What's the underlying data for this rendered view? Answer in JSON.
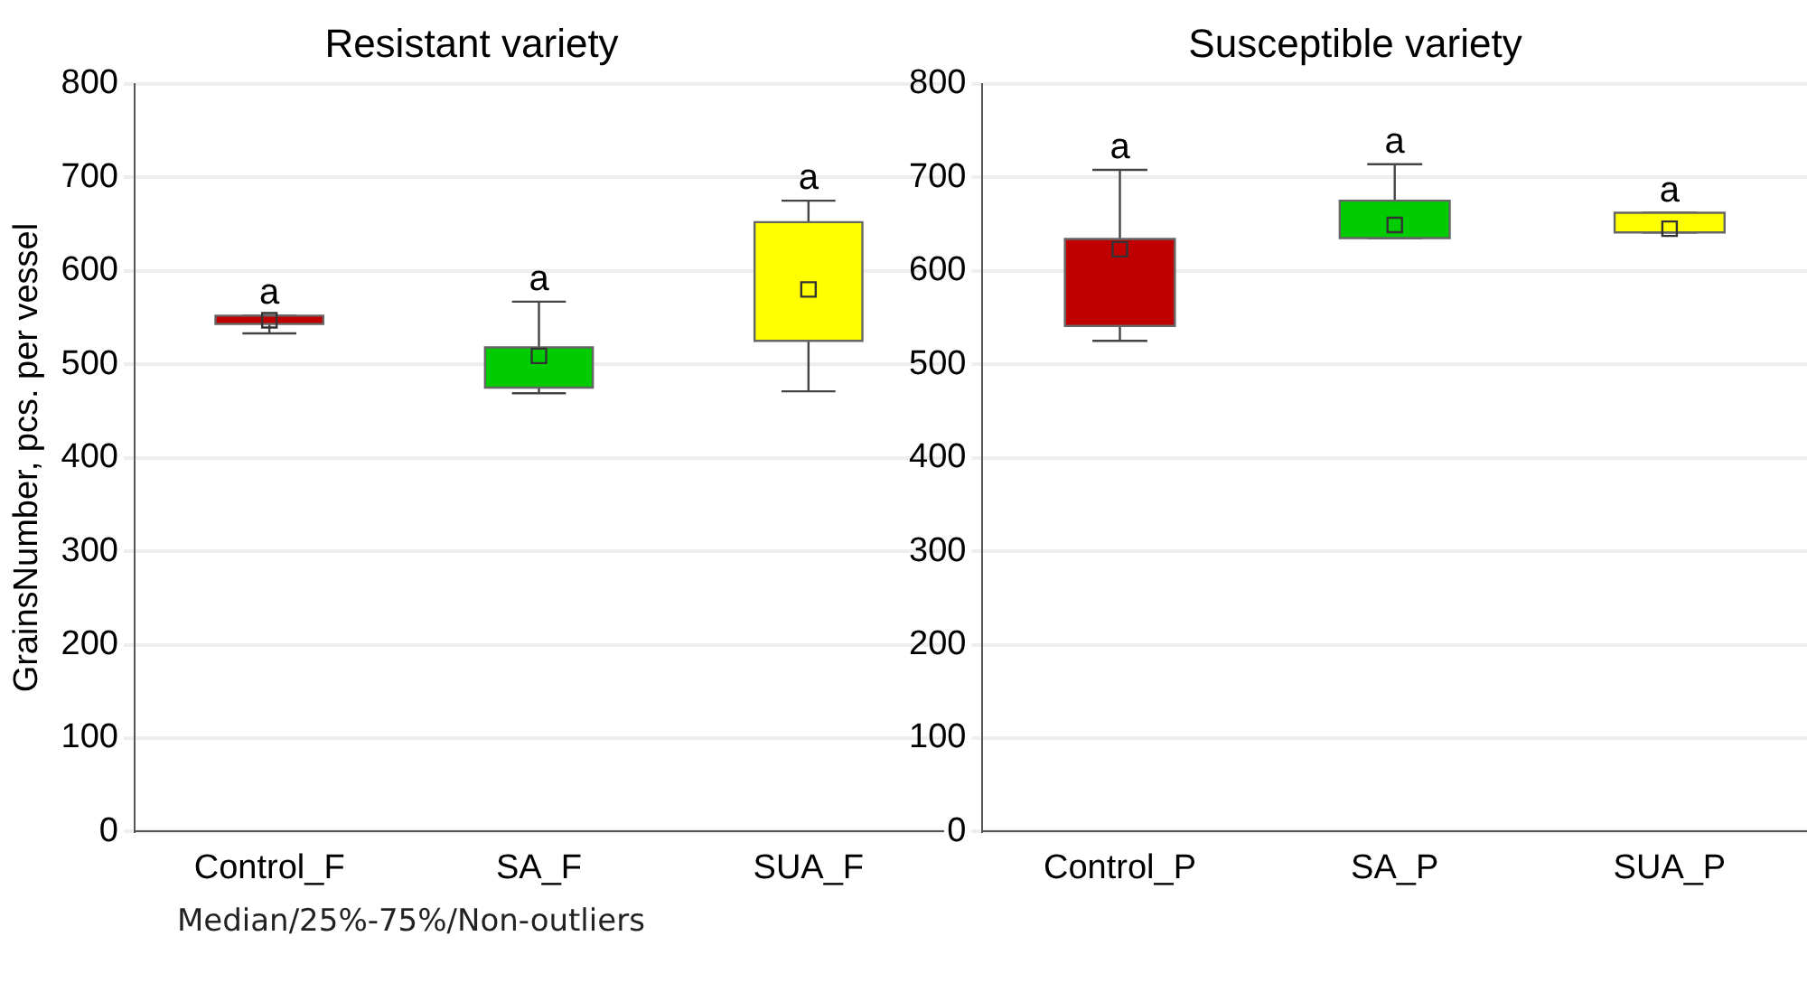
{
  "chart_data": [
    {
      "type": "box",
      "title": "Resistant variety",
      "ylabel": "GrainsNumber, pcs. per vessel",
      "categories": [
        "Control_F",
        "SA_F",
        "SUA_F"
      ],
      "colors": [
        "#c00000",
        "#00cc00",
        "#ffff00"
      ],
      "boxes": [
        {
          "low": 533,
          "q1": 543,
          "median": 547,
          "q3": 552,
          "high": 552
        },
        {
          "low": 469,
          "q1": 475,
          "median": 509,
          "q3": 518,
          "high": 567
        },
        {
          "low": 471,
          "q1": 525,
          "median": 580,
          "q3": 652,
          "high": 675
        }
      ],
      "ylim": [
        0,
        800
      ],
      "yticks": [
        0,
        100,
        200,
        300,
        400,
        500,
        600,
        700,
        800
      ],
      "grid": "y",
      "annotations": [
        "a",
        "a",
        "a",
        "Median/25%-75%/Non-outliers"
      ]
    },
    {
      "type": "box",
      "title": "Susceptible variety",
      "categories": [
        "Control_P",
        "SA_P",
        "SUA_P"
      ],
      "colors": [
        "#c00000",
        "#00cc00",
        "#ffff00"
      ],
      "boxes": [
        {
          "low": 525,
          "q1": 541,
          "median": 623,
          "q3": 634,
          "high": 708
        },
        {
          "low": 635,
          "q1": 635,
          "median": 649,
          "q3": 675,
          "high": 714
        },
        {
          "low": 641,
          "q1": 641,
          "median": 645,
          "q3": 662,
          "high": 662
        }
      ],
      "ylim": [
        0,
        800
      ],
      "yticks": [
        0,
        100,
        200,
        300,
        400,
        500,
        600,
        700,
        800
      ],
      "grid": "y",
      "annotations": [
        "a",
        "a",
        "a"
      ]
    }
  ]
}
